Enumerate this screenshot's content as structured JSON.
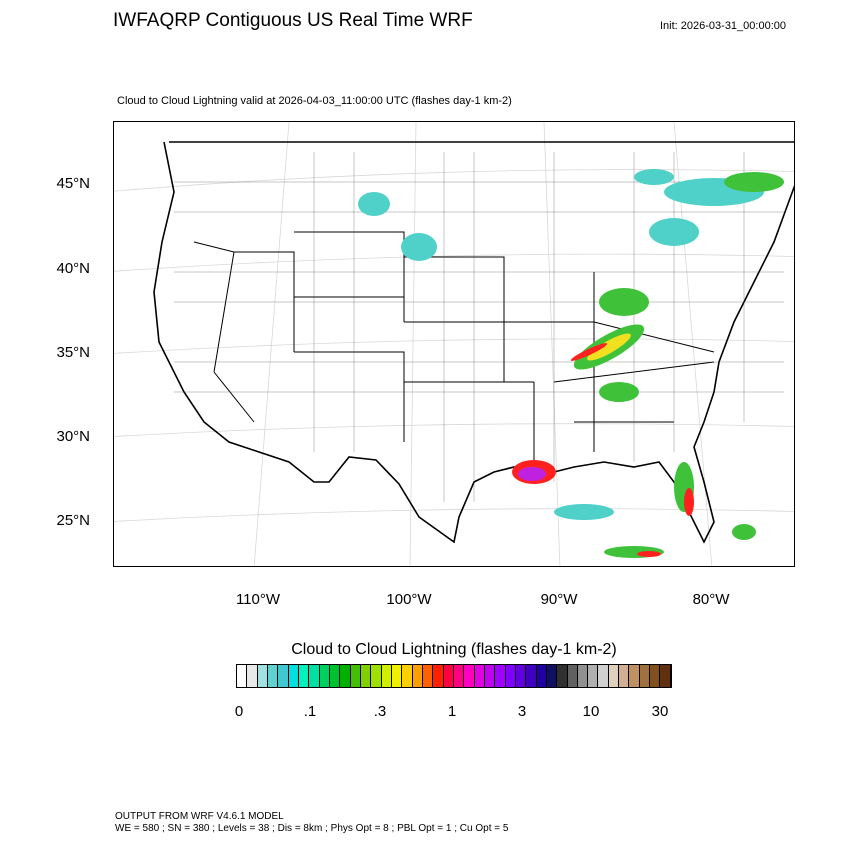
{
  "header": {
    "title": "IWFAQRP Contiguous US Real Time WRF",
    "init": "Init: 2026-03-31_00:00:00",
    "subtitle": "Cloud to Cloud Lightning valid at 2026-04-03_11:00:00 UTC   (flashes day-1 km-2)"
  },
  "map": {
    "lat_labels": [
      "45°N",
      "40°N",
      "35°N",
      "30°N",
      "25°N"
    ],
    "lon_labels": [
      "110°W",
      "100°W",
      "90°W",
      "80°W"
    ],
    "field_colors": {
      "low": "#4fd0c8",
      "mid": "#3fc23a",
      "high": "#f0e020",
      "very_high": "#ff2020",
      "extreme": "#c020e0"
    }
  },
  "colorbar": {
    "title": "Cloud to Cloud Lightning  (flashes day-1 km-2)",
    "labels": [
      "0",
      ".1",
      ".3",
      "1",
      "3",
      "10",
      "30"
    ],
    "colors": [
      "#ffffff",
      "#e8e8e8",
      "#a0e0e0",
      "#60d0d0",
      "#40c8d0",
      "#00e0e0",
      "#00f0c0",
      "#00e0a0",
      "#00d060",
      "#00c030",
      "#00b000",
      "#40c000",
      "#80d000",
      "#a0e000",
      "#d0f000",
      "#f0f000",
      "#ffd000",
      "#ffa000",
      "#ff6000",
      "#ff2000",
      "#ff0040",
      "#ff0080",
      "#ff00c0",
      "#e000e0",
      "#c000f0",
      "#a000ff",
      "#8000ff",
      "#6000e0",
      "#4000c0",
      "#2000a0",
      "#101060",
      "#303030",
      "#606060",
      "#909090",
      "#b0b0b0",
      "#d0d0d0",
      "#e0d0c0",
      "#d0b090",
      "#c09060",
      "#a07040",
      "#805020",
      "#603010"
    ]
  },
  "footer": {
    "line1": "OUTPUT FROM WRF V4.6.1 MODEL",
    "line2": "WE = 580 ; SN = 380 ; Levels = 38 ; Dis = 8km ; Phys Opt = 8 ; PBL Opt = 1 ; Cu Opt = 5"
  }
}
